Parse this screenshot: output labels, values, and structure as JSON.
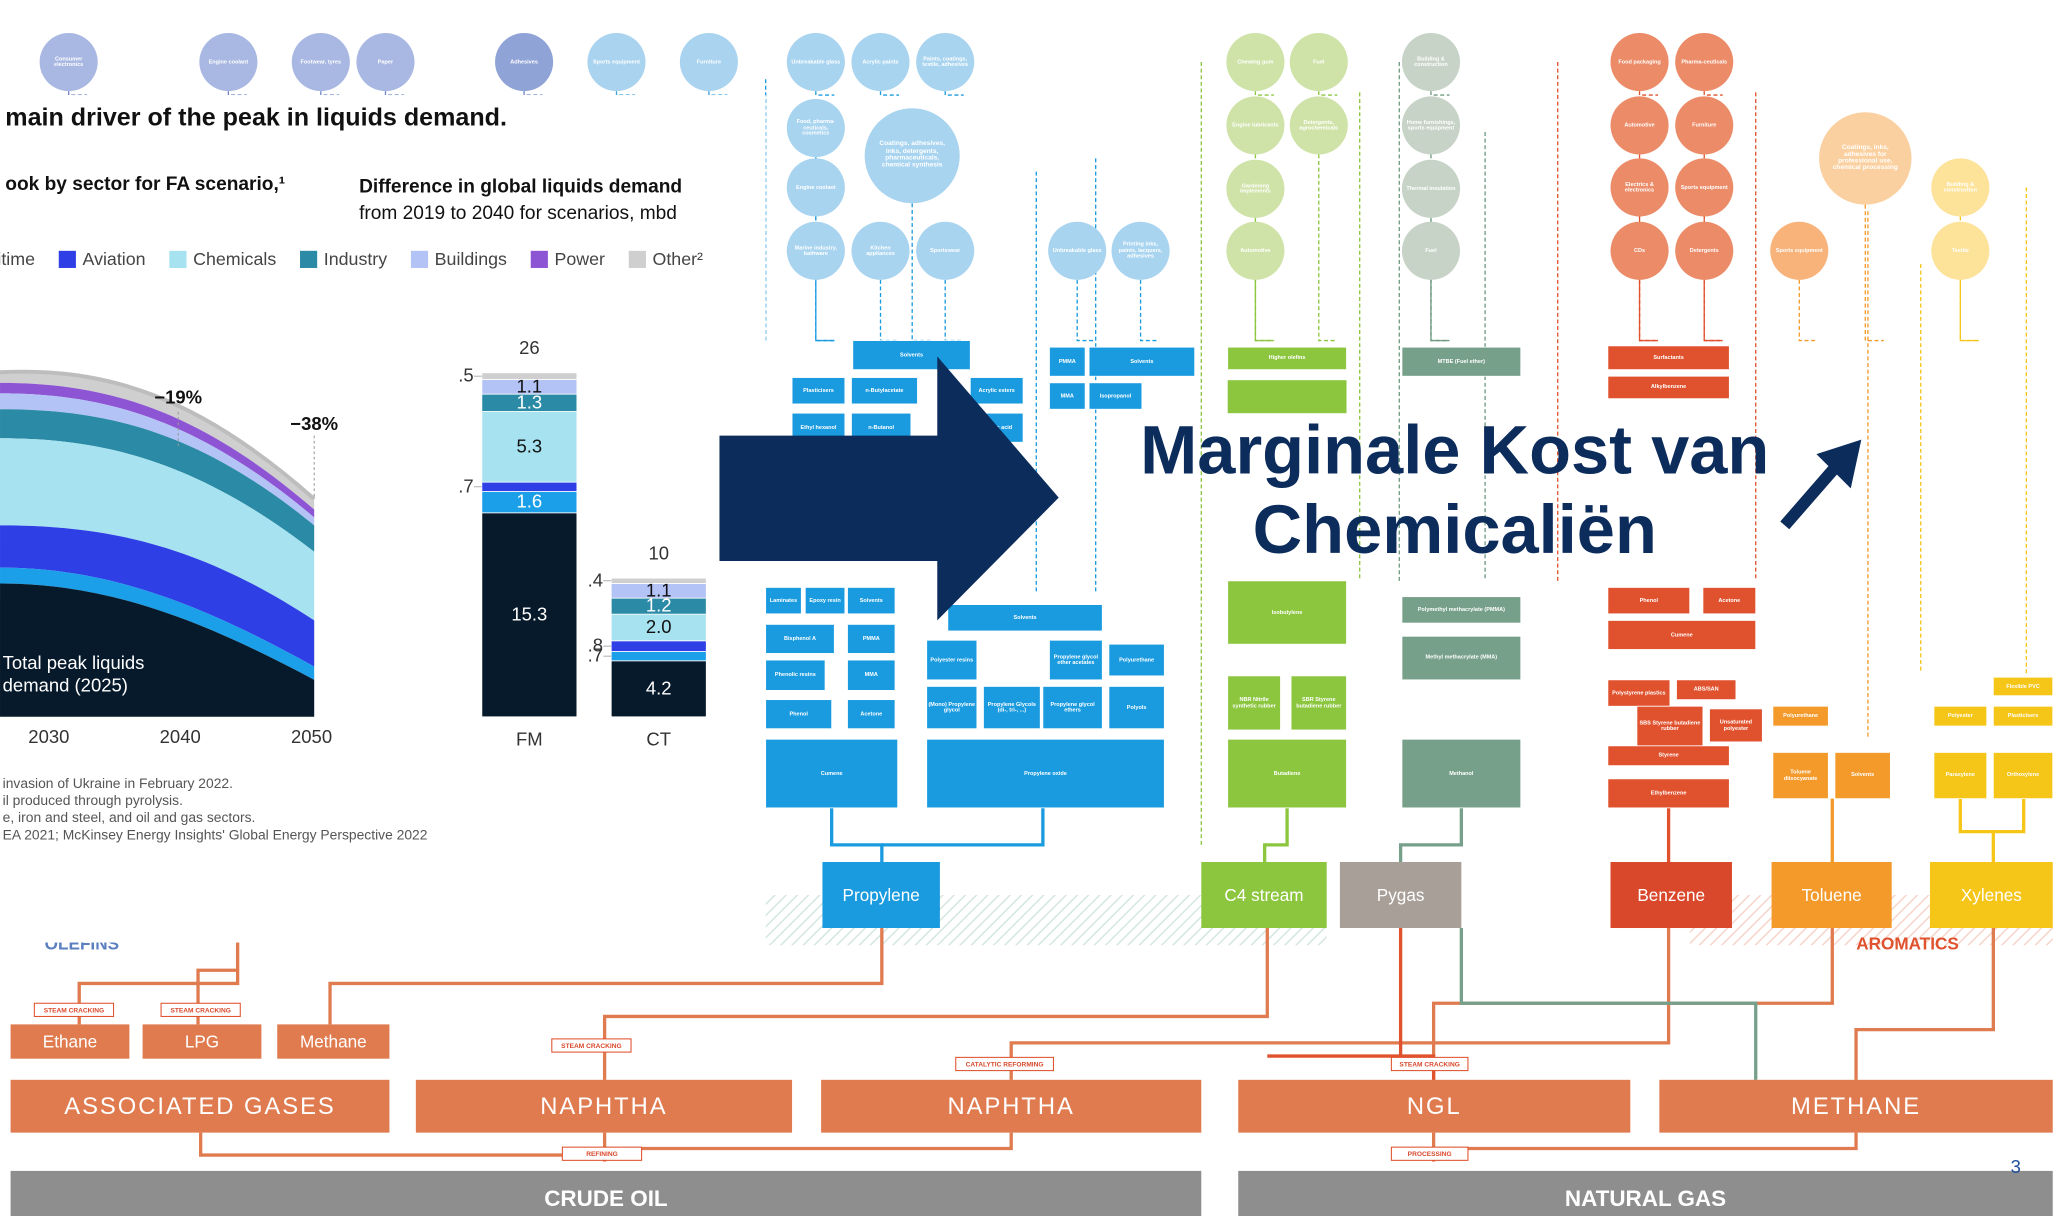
{
  "slide": {
    "headline_lines": [
      "Marginale Kost van",
      "Chemicaliën"
    ],
    "page_number": "3"
  },
  "chart_data": {
    "type": "bar",
    "title": "main driver of the peak in liquids demand.",
    "left_subtitle": "ook by sector for FA scenario,¹",
    "subtitle_lines": [
      "Difference in global liquids demand",
      "from 2019 to 2040 for scenarios, mbd"
    ],
    "area_annotations": [
      "−19%",
      "−38%"
    ],
    "area_note_lines": [
      "Total peak liquids",
      "demand (2025)"
    ],
    "area_xticks": [
      2030,
      2040,
      2050
    ],
    "categories": [
      "FM",
      "CT"
    ],
    "totals": [
      26,
      10
    ],
    "series": [
      {
        "name": null,
        "color": "#061a2b",
        "values": [
          15.3,
          4.2
        ],
        "value_labels": [
          "15.3",
          "4.2"
        ]
      },
      {
        "name": "itime",
        "color": "#1a9fe8",
        "values": [
          1.6,
          0.7
        ],
        "value_labels": [
          "1.6",
          ".7"
        ]
      },
      {
        "name": "Aviation",
        "color": "#2f3fe6",
        "values": [
          0.7,
          0.8
        ],
        "value_labels": [
          ".7",
          ".8"
        ]
      },
      {
        "name": "Chemicals",
        "color": "#a6e2ef",
        "values": [
          5.3,
          2.0
        ],
        "value_labels": [
          "5.3",
          "2.0"
        ]
      },
      {
        "name": "Industry",
        "color": "#2b8aa6",
        "values": [
          1.3,
          1.2
        ],
        "value_labels": [
          "1.3",
          "1.2"
        ]
      },
      {
        "name": "Buildings",
        "color": "#b3c3f5",
        "values": [
          1.1,
          1.1
        ],
        "value_labels": [
          "1.1",
          "1.1"
        ]
      },
      {
        "name": "Power",
        "color": "#8d55d4",
        "values": [
          null,
          null
        ]
      },
      {
        "name": "Other²",
        "color": "#cfcfcf",
        "values": [
          0.5,
          0.4
        ],
        "value_labels": [
          ".5",
          ".4"
        ]
      }
    ],
    "footnotes": [
      "invasion of Ukraine in February 2022.",
      "il produced through pyrolysis.",
      "e, iron and steel, and oil and gas sectors.",
      "EA 2021; McKinsey Energy Insights' Global Energy Perspective 2022"
    ]
  },
  "flow": {
    "circles": [
      "Consumer electronics",
      "Engine coolant",
      "Footwear, tyres",
      "Paper",
      "Adhesives",
      "Sports equipment",
      "Furniture",
      "Unbreakable glass",
      "Acrylic paints",
      "Paints, coatings, textile, adhesives",
      "Food, pharma-ceuticals, cosmetics",
      "Coatings, adhesives, inks, detergents, pharmaceuticals, chemical synthesis",
      "Engine coolant",
      "Marine industry, bathware",
      "Kitchen appliances",
      "Sportswear",
      "Unbreakable glass",
      "Printing inks, paints, lacquers, adhesives",
      "Chewing gum",
      "Fuel",
      "Engine lubricants",
      "Detergents, agrochemicals",
      "Gardening implements",
      "Automotive",
      "Building & construction",
      "Home furnishings, sports equipment",
      "Thermal insulation",
      "Fuel",
      "Food packaging",
      "Pharma-ceuticals",
      "Automotive",
      "Furniture",
      "Electrics & electronics",
      "Sports equipment",
      "CDs",
      "Detergents",
      "Sports equipment",
      "Coatings, inks, adhesives for professional use, chemical processing",
      "Building & construction",
      "Textile"
    ],
    "boxes": [
      "Solvents",
      "Plasticisers",
      "n-Butylacetate",
      "Acrylic esters",
      "Ethyl hexanol",
      "n-Butanol",
      "Acrylic acid",
      "PMMA",
      "Solvents",
      "MMA",
      "Isopropanol",
      "Laminates",
      "Epoxy resin",
      "Solvents",
      "Bisphenol A",
      "PMMA",
      "Phenolic resins",
      "MMA",
      "Phenol",
      "Acetone",
      "Cumene",
      "Solvents",
      "Polyester resins",
      "Propylene glycol ether acetates",
      "Polyurethane",
      "(Mono) Propylene glycol",
      "Propylene Glycols (di-, tri-, ...)",
      "Propylene glycol ethers",
      "Polyols",
      "Propylene oxide",
      "Higher olefins",
      "Isobutylene",
      "NBR Nitrile synthetic rubber",
      "SBR Styrene butadiene rubber",
      "Butadiene",
      "MTBE (Fuel ether)",
      "Polymethyl methacrylate (PMMA)",
      "Methyl methacrylate (MMA)",
      "Methanol",
      "Surfactants",
      "Alkylbenzene",
      "Phenol",
      "Acetone",
      "Cumene",
      "Polystyrene plastics",
      "ABS/SAN",
      "SBS Styrene butadiene rubber",
      "Unsaturated polyester",
      "Styrene",
      "Ethylbenzene",
      "Polyurethane",
      "Toluene diisocyanate",
      "Solvents",
      "Flexible PVC",
      "Polyester",
      "Plasticisers",
      "Paraxylene",
      "Orthoxylene"
    ],
    "intermediates": [
      "Propylene",
      "C4 stream",
      "Pygas",
      "Benzene",
      "Toluene",
      "Xylenes"
    ],
    "groups": [
      "OLEFINS",
      "AROMATICS"
    ],
    "gases": [
      "Ethane",
      "LPG",
      "Methane"
    ],
    "feedstocks": [
      "ASSOCIATED GASES",
      "NAPHTHA",
      "NAPHTHA",
      "NGL",
      "METHANE"
    ],
    "sources": [
      "CRUDE OIL",
      "NATURAL GAS"
    ],
    "process_labels": [
      "STEAM CRACKING",
      "STEAM CRACKING",
      "STEAM CRACKING",
      "CATALYTIC REFORMING",
      "STEAM CRACKING",
      "REFINING",
      "PROCESSING"
    ]
  }
}
